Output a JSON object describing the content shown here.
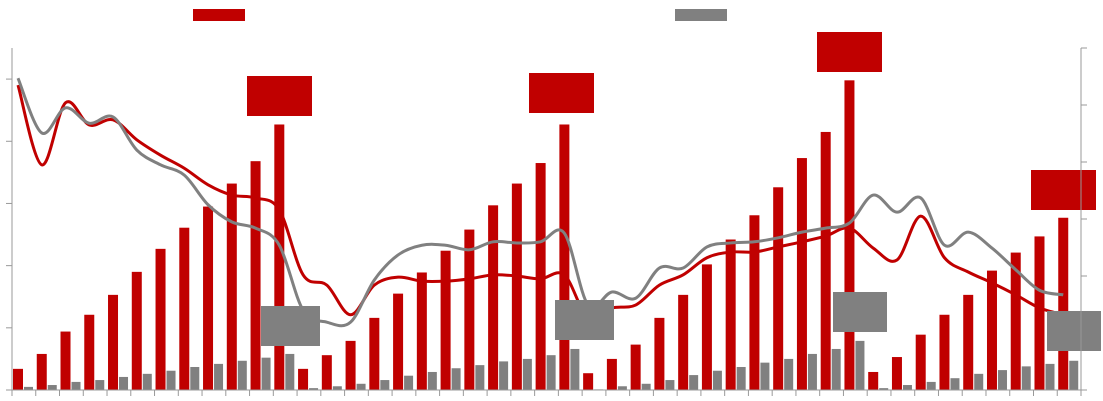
{
  "chart_data": {
    "type": "bar",
    "categories": [
      null,
      null,
      null,
      null,
      null,
      null,
      null,
      null,
      null,
      null,
      null,
      null,
      null,
      null,
      null,
      null,
      null,
      null,
      null,
      null,
      null,
      null,
      null,
      null,
      null,
      null,
      null,
      null,
      null,
      null,
      null,
      null,
      null,
      null,
      null,
      null,
      null,
      null,
      null,
      null,
      null,
      null,
      null,
      null,
      null
    ],
    "series": [
      {
        "color": "#c00000",
        "values": [
          0.34,
          0.58,
          0.94,
          1.21,
          1.53,
          1.9,
          2.27,
          2.61,
          2.95,
          3.32,
          3.68,
          4.27,
          0.34,
          0.56,
          0.79,
          1.16,
          1.55,
          1.89,
          2.24,
          2.58,
          2.97,
          3.32,
          3.65,
          4.27,
          0.27,
          0.5,
          0.73,
          1.16,
          1.53,
          2.02,
          2.42,
          2.81,
          3.26,
          3.73,
          4.15,
          4.98,
          0.29,
          0.53,
          0.89,
          1.21,
          1.53,
          1.92,
          2.21,
          2.47,
          2.77
        ]
      },
      {
        "color": "#808080",
        "values": [
          0.05,
          0.08,
          0.13,
          0.16,
          0.21,
          0.26,
          0.31,
          0.37,
          0.42,
          0.47,
          0.52,
          0.58,
          0.03,
          0.06,
          0.1,
          0.16,
          0.23,
          0.29,
          0.35,
          0.4,
          0.46,
          0.5,
          0.56,
          0.66,
          0.01,
          0.06,
          0.1,
          0.16,
          0.24,
          0.31,
          0.37,
          0.44,
          0.5,
          0.58,
          0.66,
          0.79,
          0.03,
          0.08,
          0.13,
          0.19,
          0.26,
          0.32,
          0.38,
          0.42,
          0.47
        ]
      },
      {
        "type": "line",
        "axis": "y2",
        "color": "#c00000",
        "values": [
          5.35,
          3.95,
          5.04,
          4.65,
          4.74,
          4.39,
          4.12,
          3.89,
          3.6,
          3.42,
          3.37,
          3.16,
          2.02,
          1.84,
          1.32,
          1.84,
          1.98,
          1.91,
          1.91,
          1.95,
          2.02,
          2.0,
          1.95,
          2.02,
          1.26,
          1.44,
          1.49,
          1.84,
          2.02,
          2.32,
          2.42,
          2.42,
          2.51,
          2.6,
          2.7,
          2.84,
          2.49,
          2.28,
          3.05,
          2.32,
          2.07,
          1.88,
          1.67,
          1.44,
          1.32
        ]
      },
      {
        "type": "line",
        "axis": "y2",
        "color": "#808080",
        "values": [
          5.47,
          4.51,
          4.95,
          4.68,
          4.79,
          4.21,
          3.95,
          3.77,
          3.25,
          2.95,
          2.84,
          2.54,
          1.4,
          1.19,
          1.19,
          1.93,
          2.37,
          2.54,
          2.54,
          2.46,
          2.6,
          2.58,
          2.6,
          2.75,
          1.49,
          1.72,
          1.61,
          2.14,
          2.14,
          2.51,
          2.58,
          2.6,
          2.67,
          2.77,
          2.84,
          2.93,
          3.42,
          3.12,
          3.37,
          2.54,
          2.77,
          2.49,
          2.11,
          1.75,
          1.67
        ]
      }
    ],
    "ylim": [
      0,
      5.5
    ],
    "yticks": [
      0,
      1,
      2,
      3,
      4,
      5
    ],
    "y2lim": [
      0,
      6
    ],
    "y2ticks": [
      0,
      1,
      2,
      3,
      4,
      5,
      6
    ]
  }
}
